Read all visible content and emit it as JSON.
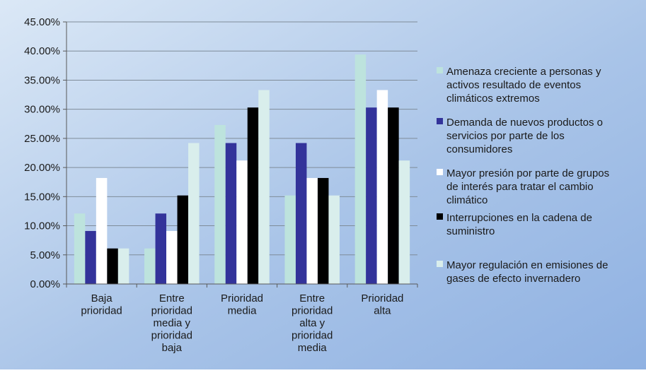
{
  "chart_data": {
    "type": "bar",
    "title": "",
    "xlabel": "",
    "ylabel": "",
    "ylim": [
      0,
      45
    ],
    "y_tick_values": [
      0,
      5,
      10,
      15,
      20,
      25,
      30,
      35,
      40,
      45
    ],
    "y_tick_labels": [
      "0.00%",
      "5.00%",
      "10.00%",
      "15.00%",
      "20.00%",
      "25.00%",
      "30.00%",
      "35.00%",
      "40.00%",
      "45.00%"
    ],
    "grid": true,
    "legend_position": "right",
    "categories": [
      [
        "Baja",
        "prioridad"
      ],
      [
        "Entre",
        "prioridad",
        "media y",
        "prioridad",
        "baja"
      ],
      [
        "Prioridad",
        "media"
      ],
      [
        "Entre",
        "prioridad",
        "alta y",
        "prioridad",
        "media"
      ],
      [
        "Prioridad",
        "alta"
      ]
    ],
    "series": [
      {
        "name": "Amenaza creciente a personas y activos resultado de eventos climáticos extremos",
        "legend_lines": [
          "Amenaza creciente a personas y",
          "activos resultado de eventos",
          "climáticos extremos"
        ],
        "color": "#bde3dd",
        "values": [
          12.1,
          6.1,
          27.3,
          15.2,
          39.4
        ]
      },
      {
        "name": "Demanda de nuevos productos o servicios por parte de los consumidores",
        "legend_lines": [
          "Demanda de nuevos productos o",
          "servicios por parte de los",
          "consumidores"
        ],
        "color": "#33339a",
        "values": [
          9.1,
          12.1,
          24.2,
          24.2,
          30.3
        ]
      },
      {
        "name": "Mayor presión por parte de grupos de interés para tratar el cambio climático",
        "legend_lines": [
          "Mayor presión por parte de grupos",
          "de interés para tratar el cambio",
          "climático"
        ],
        "color": "#ffffff",
        "values": [
          18.2,
          9.1,
          21.2,
          18.2,
          33.3
        ]
      },
      {
        "name": "Interrupciones en la cadena de suministro",
        "legend_lines": [
          "Interrupciones en la cadena de",
          "suministro"
        ],
        "color": "#000000",
        "values": [
          6.1,
          15.2,
          30.3,
          18.2,
          30.3
        ]
      },
      {
        "name": "Mayor regulación en emisiones de gases de efecto invernadero",
        "legend_lines": [
          "Mayor regulación en emisiones de",
          "gases de efecto invernadero"
        ],
        "color": "#d9eeec",
        "values": [
          6.1,
          24.2,
          33.3,
          15.2,
          21.2
        ]
      }
    ]
  }
}
